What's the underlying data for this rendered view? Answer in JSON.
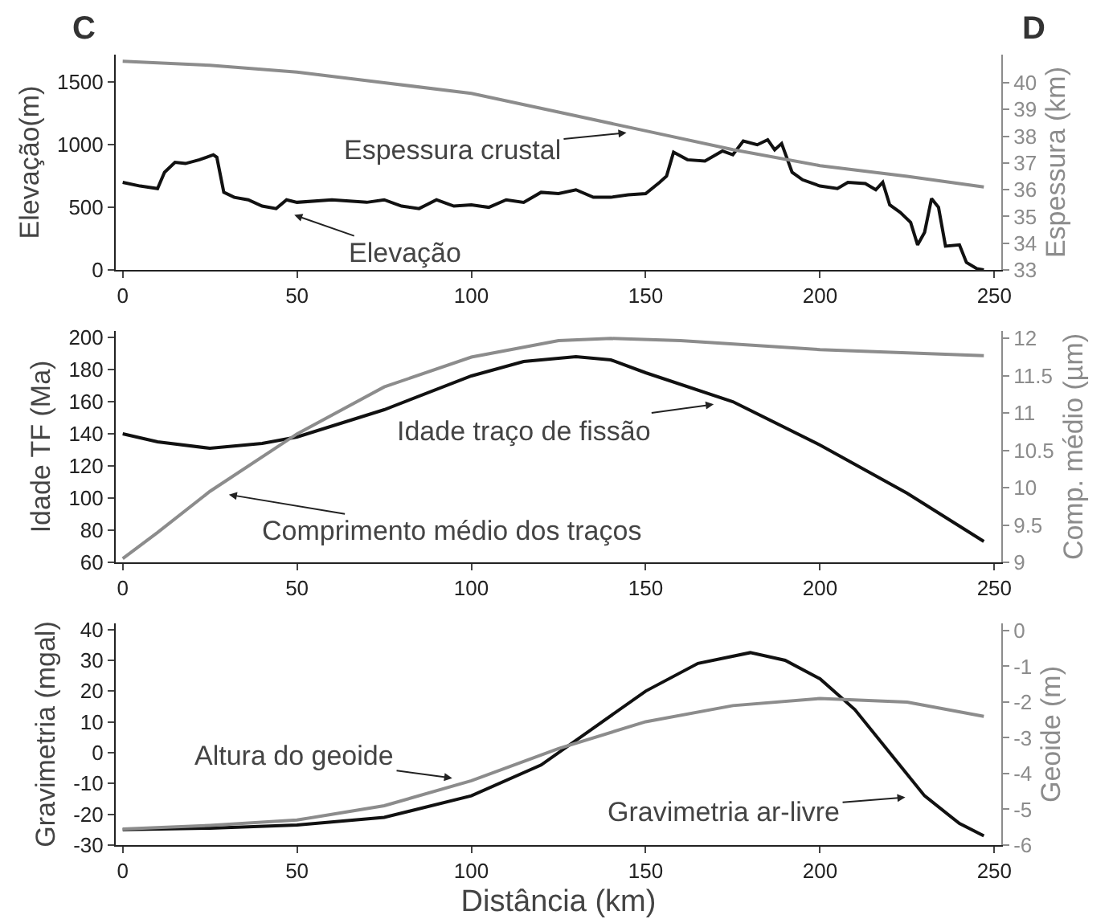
{
  "chart_data": [
    {
      "type": "line",
      "ylabel": "Elevação(m)",
      "y2label": "Espessura (km)",
      "annotations": [
        "C",
        "D"
      ],
      "xlim": [
        -2,
        252
      ],
      "xticks": [
        0,
        50,
        100,
        150,
        200,
        250
      ],
      "ylim": [
        0,
        1720
      ],
      "yticks": [
        0,
        500,
        1000,
        1500
      ],
      "y2lim": [
        33,
        41.05
      ],
      "y2ticks": [
        33,
        34,
        35,
        36,
        37,
        38,
        39,
        40
      ],
      "grid": false,
      "legend": false,
      "series": [
        {
          "name": "Elevação",
          "color": "#111111",
          "x": [
            0,
            5,
            10,
            12,
            15,
            18,
            22,
            26,
            27,
            29,
            32,
            36,
            40,
            44,
            47,
            50,
            60,
            70,
            75,
            80,
            85,
            90,
            95,
            100,
            105,
            110,
            115,
            120,
            125,
            130,
            135,
            140,
            145,
            150,
            154,
            156,
            158,
            162,
            167,
            172,
            175,
            178,
            182,
            185,
            187,
            189,
            192,
            195,
            200,
            205,
            208,
            213,
            216,
            218,
            220,
            223,
            226,
            228,
            230,
            232,
            234,
            236,
            240,
            242,
            245,
            247
          ],
          "values": [
            700,
            670,
            650,
            780,
            860,
            850,
            880,
            920,
            900,
            620,
            580,
            560,
            510,
            490,
            560,
            540,
            560,
            540,
            560,
            510,
            490,
            560,
            510,
            520,
            500,
            560,
            540,
            620,
            610,
            640,
            580,
            580,
            600,
            610,
            700,
            750,
            940,
            880,
            870,
            950,
            920,
            1030,
            1000,
            1040,
            960,
            1010,
            780,
            720,
            670,
            650,
            700,
            690,
            640,
            700,
            520,
            460,
            380,
            200,
            300,
            570,
            500,
            190,
            200,
            60,
            10,
            0
          ]
        },
        {
          "name": "Espessura crustal",
          "color": "#8c8c8c",
          "axis": "y2",
          "x": [
            0,
            25,
            50,
            75,
            100,
            125,
            150,
            175,
            200,
            225,
            247
          ],
          "values": [
            40.8,
            40.65,
            40.4,
            40.0,
            39.6,
            38.9,
            38.2,
            37.5,
            36.9,
            36.5,
            36.1
          ]
        }
      ]
    },
    {
      "type": "line",
      "ylabel": "Idade TF (Ma)",
      "y2label": "Comp. médio (µm)",
      "xlim": [
        -2,
        252
      ],
      "xticks": [
        0,
        50,
        100,
        150,
        200,
        250
      ],
      "ylim": [
        60,
        204
      ],
      "yticks": [
        60,
        80,
        100,
        120,
        140,
        160,
        180,
        200
      ],
      "y2lim": [
        9,
        12.1
      ],
      "y2ticks": [
        9,
        9.5,
        10,
        10.5,
        11,
        11.5,
        12
      ],
      "grid": false,
      "legend": false,
      "series": [
        {
          "name": "Idade traço de fissão",
          "color": "#111111",
          "x": [
            0,
            10,
            25,
            40,
            50,
            75,
            100,
            115,
            130,
            140,
            150,
            175,
            200,
            225,
            247
          ],
          "values": [
            140,
            135,
            131,
            134,
            138,
            155,
            176,
            185,
            188,
            186,
            178,
            160,
            133,
            103,
            73
          ]
        },
        {
          "name": "Comprimento médio dos traços",
          "color": "#8c8c8c",
          "axis": "y2",
          "x": [
            0,
            10,
            25,
            50,
            75,
            100,
            125,
            140,
            160,
            200,
            247
          ],
          "values": [
            9.05,
            9.4,
            9.95,
            10.72,
            11.35,
            11.75,
            11.97,
            12.0,
            11.97,
            11.85,
            11.77
          ]
        }
      ]
    },
    {
      "type": "line",
      "xlabel": "Distância (km)",
      "ylabel": "Gravimetria (mgal)",
      "y2label": "Geoide (m)",
      "xlim": [
        -2,
        252
      ],
      "xticks": [
        0,
        50,
        100,
        150,
        200,
        250
      ],
      "ylim": [
        -30,
        42
      ],
      "yticks": [
        -30,
        -20,
        -10,
        0,
        10,
        20,
        30,
        40
      ],
      "y2lim": [
        -6,
        0.2
      ],
      "y2ticks": [
        -6,
        -5,
        -4,
        -3,
        -2,
        -1,
        0
      ],
      "grid": false,
      "legend": false,
      "series": [
        {
          "name": "Gravimetria ar-livre",
          "color": "#111111",
          "x": [
            0,
            25,
            50,
            75,
            100,
            120,
            135,
            150,
            165,
            180,
            190,
            200,
            210,
            220,
            230,
            240,
            247
          ],
          "values": [
            -25,
            -24.5,
            -23.5,
            -21,
            -14,
            -4,
            8,
            20,
            29,
            32.5,
            30,
            24,
            14,
            0,
            -14,
            -23,
            -27
          ]
        },
        {
          "name": "Altura do geoide",
          "color": "#8c8c8c",
          "axis": "y2",
          "x": [
            0,
            25,
            50,
            75,
            100,
            125,
            150,
            175,
            200,
            225,
            247
          ],
          "values": [
            -5.55,
            -5.45,
            -5.3,
            -4.9,
            -4.2,
            -3.3,
            -2.55,
            -2.1,
            -1.9,
            -2.0,
            -2.4
          ]
        }
      ]
    }
  ]
}
